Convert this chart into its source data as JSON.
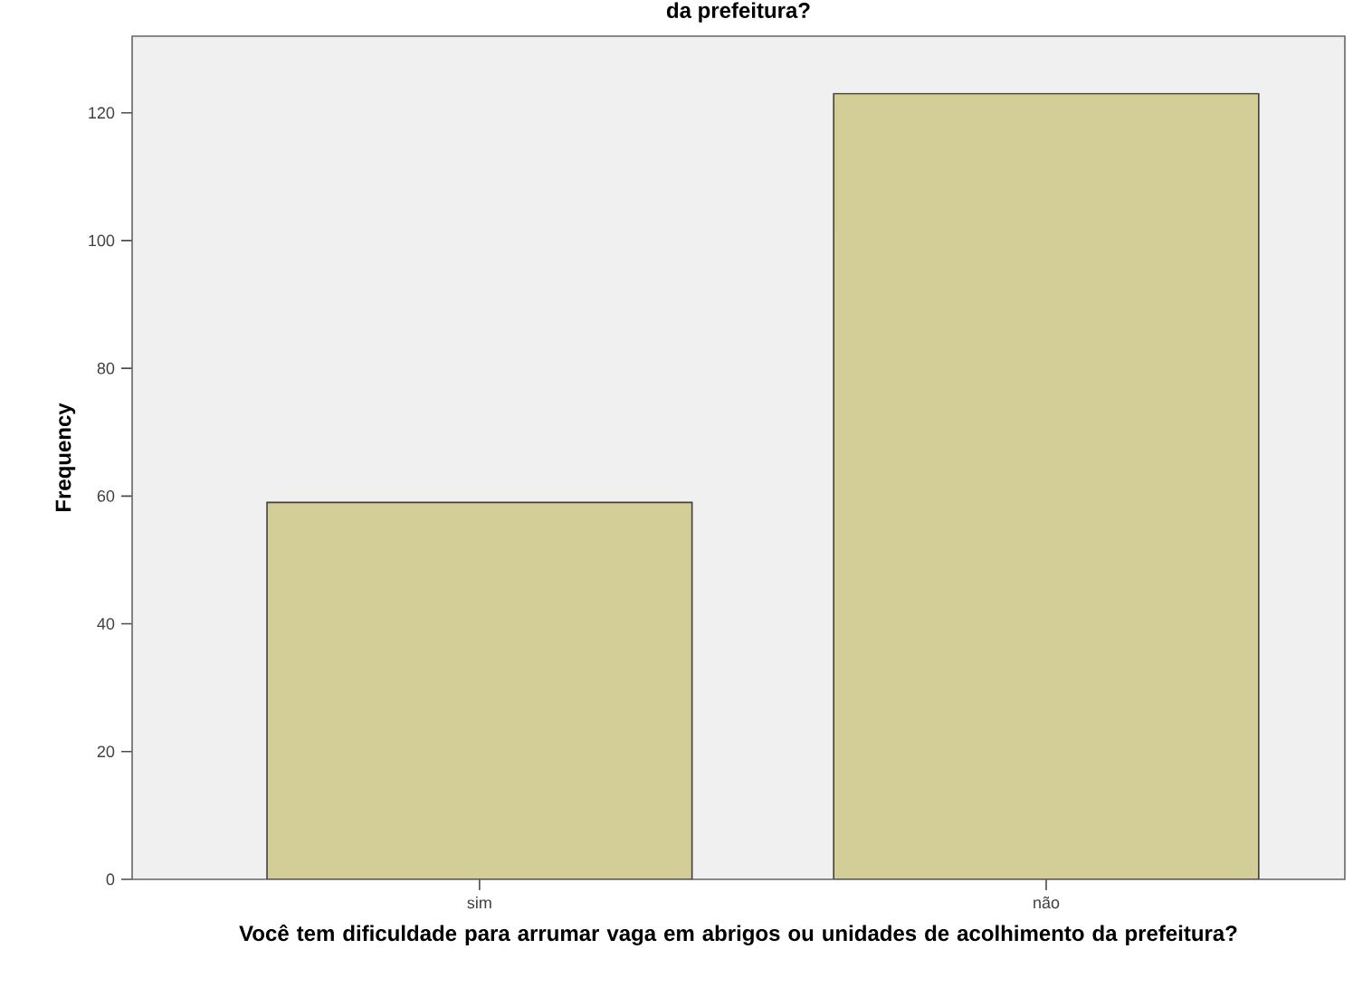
{
  "chart_data": {
    "type": "bar",
    "title": "da prefeitura?",
    "xlabel": "Você tem dificuldade para arrumar vaga em abrigos ou unidades de acolhimento da prefeitura?",
    "ylabel": "Frequency",
    "categories": [
      "sim",
      "não"
    ],
    "values": [
      59,
      123
    ],
    "color": "#d3cd97",
    "ylim": [
      0,
      132
    ],
    "yticks": [
      0,
      20,
      40,
      60,
      80,
      100,
      120
    ],
    "grid": false
  }
}
